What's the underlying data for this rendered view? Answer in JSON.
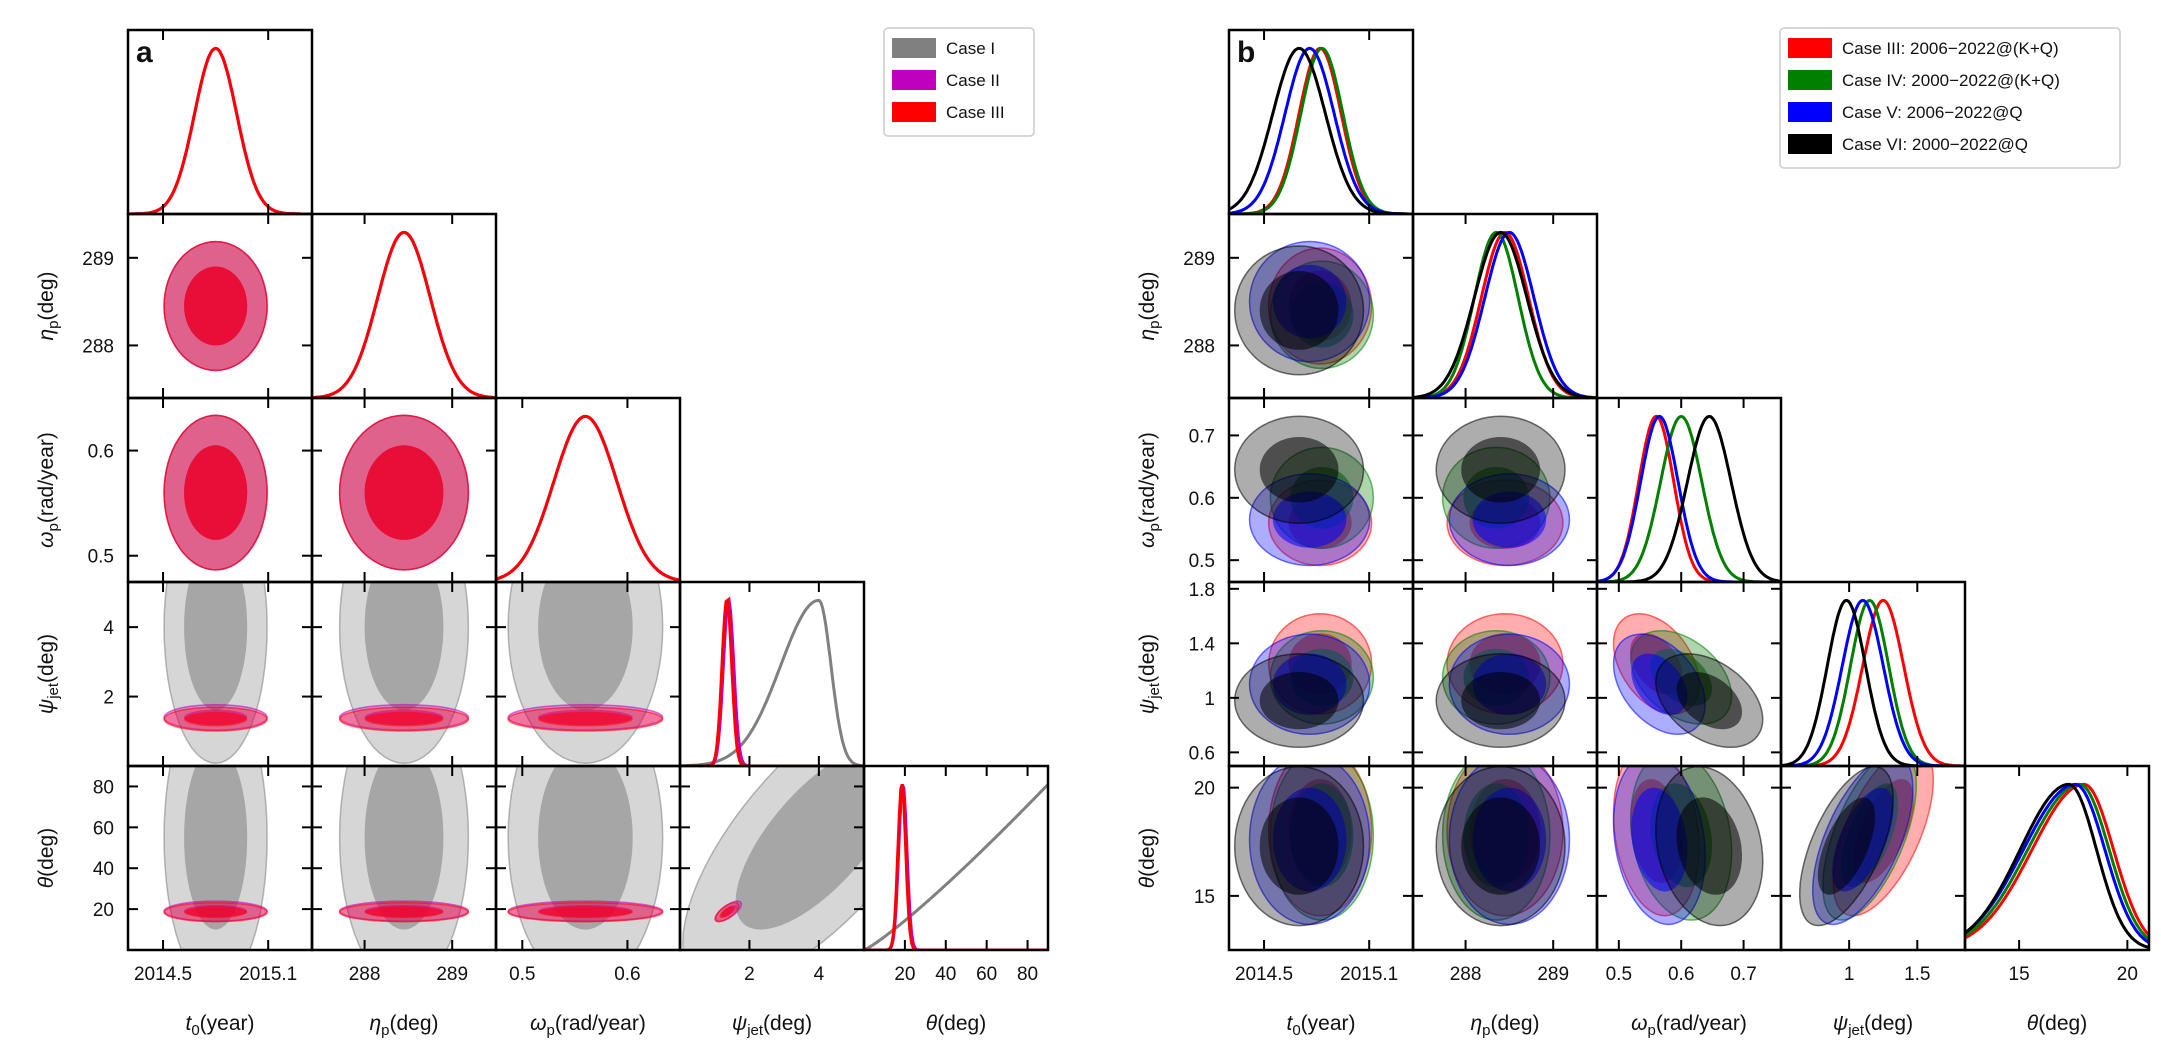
{
  "chart_data": [
    {
      "type": "corner",
      "panel_label": "a",
      "parameters": [
        {
          "label": "t",
          "subscript": "0",
          "unit": "(year)",
          "ticks": [
            2014.5,
            2015.1
          ],
          "range": [
            2014.3,
            2015.35
          ]
        },
        {
          "label": "η",
          "subscript": "p",
          "unit": "(deg)",
          "ticks": [
            288,
            289
          ],
          "range": [
            287.4,
            289.5
          ]
        },
        {
          "label": "ω",
          "subscript": "p",
          "unit": "(rad/year)",
          "ticks": [
            0.5,
            0.6
          ],
          "range": [
            0.475,
            0.65
          ]
        },
        {
          "label": "ψ",
          "subscript": "jet",
          "unit": "(deg)",
          "ticks": [
            2,
            4
          ],
          "range": [
            0,
            5.3
          ]
        },
        {
          "label": "θ",
          "subscript": "",
          "unit": "(deg)",
          "ticks": [
            20,
            40,
            60,
            80
          ],
          "range": [
            0,
            90
          ]
        }
      ],
      "series": [
        {
          "name": "Case I",
          "color": "#808080",
          "mean": [
            2014.8,
            288.45,
            0.56,
            4.0,
            55.0
          ],
          "sigma": [
            0.12,
            0.3,
            0.03,
            1.6,
            30.0
          ],
          "rho": [
            [
              0,
              0,
              0,
              0,
              0
            ],
            [
              0,
              0,
              0,
              0,
              0
            ],
            [
              0,
              0,
              0,
              0,
              0
            ],
            [
              0,
              0,
              0,
              0,
              0.7
            ],
            [
              0,
              0,
              0,
              0.7,
              0
            ]
          ],
          "one_d_shape": [
            "gauss",
            "gauss",
            "gauss",
            "peak_at_4",
            "rising"
          ]
        },
        {
          "name": "Case II",
          "color": "#bf00bf",
          "mean": [
            2014.8,
            288.45,
            0.56,
            1.4,
            19.0
          ],
          "sigma": [
            0.12,
            0.3,
            0.03,
            0.15,
            2.0
          ],
          "rho": [
            [
              0,
              0,
              0,
              0,
              0
            ],
            [
              0,
              0,
              0,
              0,
              0
            ],
            [
              0,
              0,
              0,
              0,
              0
            ],
            [
              0,
              0,
              0,
              0,
              0.7
            ],
            [
              0,
              0,
              0,
              0.7,
              0
            ]
          ],
          "one_d_shape": [
            "gauss",
            "gauss",
            "gauss",
            "gauss",
            "gauss"
          ]
        },
        {
          "name": "Case III",
          "color": "#ff0000",
          "mean": [
            2014.8,
            288.45,
            0.56,
            1.35,
            18.5
          ],
          "sigma": [
            0.12,
            0.3,
            0.03,
            0.14,
            1.9
          ],
          "rho": [
            [
              0,
              0,
              0,
              0,
              0
            ],
            [
              0,
              0,
              0,
              0,
              0
            ],
            [
              0,
              0,
              0,
              0,
              0
            ],
            [
              0,
              0,
              0,
              0,
              0.7
            ],
            [
              0,
              0,
              0,
              0.7,
              0
            ]
          ],
          "one_d_shape": [
            "gauss",
            "gauss",
            "gauss",
            "gauss",
            "gauss"
          ]
        }
      ]
    },
    {
      "type": "corner",
      "panel_label": "b",
      "parameters": [
        {
          "label": "t",
          "subscript": "0",
          "unit": "(year)",
          "ticks": [
            2014.5,
            2015.1
          ],
          "range": [
            2014.3,
            2015.35
          ]
        },
        {
          "label": "η",
          "subscript": "p",
          "unit": "(deg)",
          "ticks": [
            288,
            289
          ],
          "range": [
            287.4,
            289.5
          ]
        },
        {
          "label": "ω",
          "subscript": "p",
          "unit": "(rad/year)",
          "ticks": [
            0.5,
            0.6,
            0.7
          ],
          "range": [
            0.465,
            0.76
          ]
        },
        {
          "label": "ψ",
          "subscript": "jet",
          "unit": "(deg)",
          "ticks": [
            0.6,
            1.0,
            1.4,
            1.8
          ],
          "ticks_x": [
            1.0,
            1.5
          ],
          "range": [
            0.5,
            1.85
          ]
        },
        {
          "label": "θ",
          "subscript": "",
          "unit": "(deg)",
          "ticks": [
            15,
            20
          ],
          "range": [
            12.5,
            21.0
          ]
        }
      ],
      "series": [
        {
          "name": "Case III: 2006−2022@(K+Q)",
          "color": "#ff0000",
          "mean": [
            2014.82,
            288.45,
            0.56,
            1.25,
            18.0
          ],
          "sigma": [
            0.12,
            0.27,
            0.028,
            0.15,
            1.6
          ],
          "rho": [
            [
              0,
              0,
              0,
              0,
              0
            ],
            [
              0,
              0,
              0,
              0,
              0
            ],
            [
              0,
              0,
              0,
              -0.4,
              -0.2
            ],
            [
              0,
              0,
              -0.4,
              0,
              0.6
            ],
            [
              0,
              0,
              -0.2,
              0.6,
              0
            ]
          ],
          "one_d_shape": [
            "gauss",
            "gauss",
            "gauss",
            "gauss",
            "skewed"
          ]
        },
        {
          "name": "Case IV: 2000−2022@(K+Q)",
          "color": "#008000",
          "mean": [
            2014.83,
            288.35,
            0.6,
            1.15,
            17.8
          ],
          "sigma": [
            0.12,
            0.25,
            0.033,
            0.14,
            1.6
          ],
          "rho": [
            [
              0,
              0,
              0,
              0,
              0
            ],
            [
              0,
              0,
              0,
              0,
              0
            ],
            [
              0,
              0,
              0,
              -0.4,
              -0.2
            ],
            [
              0,
              0,
              -0.4,
              0,
              0.6
            ],
            [
              0,
              0,
              -0.2,
              0.6,
              0
            ]
          ],
          "one_d_shape": [
            "gauss",
            "gauss",
            "gauss",
            "gauss",
            "skewed"
          ]
        },
        {
          "name": "Case V: 2006−2022@Q",
          "color": "#0000ff",
          "mean": [
            2014.76,
            288.5,
            0.565,
            1.1,
            17.6
          ],
          "sigma": [
            0.14,
            0.28,
            0.03,
            0.15,
            1.6
          ],
          "rho": [
            [
              0,
              0,
              0,
              0,
              0
            ],
            [
              0,
              0,
              0,
              0,
              0
            ],
            [
              0,
              0,
              0,
              -0.4,
              -0.2
            ],
            [
              0,
              0,
              -0.4,
              0,
              0.6
            ],
            [
              0,
              0,
              -0.2,
              0.6,
              0
            ]
          ],
          "one_d_shape": [
            "gauss",
            "gauss",
            "gauss",
            "gauss",
            "skewed"
          ]
        },
        {
          "name": "Case VI: 2000−2022@Q",
          "color": "#000000",
          "mean": [
            2014.7,
            288.4,
            0.645,
            0.98,
            17.3
          ],
          "sigma": [
            0.15,
            0.3,
            0.035,
            0.14,
            1.5
          ],
          "rho": [
            [
              0,
              0,
              0,
              0,
              0
            ],
            [
              0,
              0,
              0,
              0,
              0
            ],
            [
              0,
              0,
              0,
              -0.4,
              -0.2
            ],
            [
              0,
              0,
              -0.4,
              0,
              0.6
            ],
            [
              0,
              0,
              -0.2,
              0.6,
              0
            ]
          ],
          "one_d_shape": [
            "gauss",
            "gauss",
            "gauss",
            "gauss",
            "skewed"
          ]
        }
      ]
    }
  ]
}
